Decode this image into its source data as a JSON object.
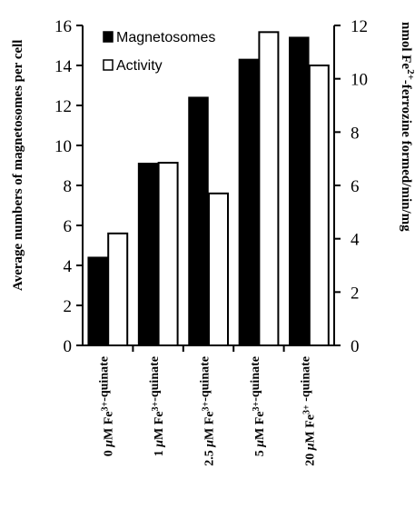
{
  "chart_data": {
    "type": "bar",
    "categories": [
      {
        "amount": "0",
        "label": "0 μM Fe3+-quinate"
      },
      {
        "amount": "1",
        "label": "1 μM Fe3+-quinate"
      },
      {
        "amount": "2.5",
        "label": "2.5 μM Fe3+-quinate"
      },
      {
        "amount": "5",
        "label": "5 μM Fe3+-quinate"
      },
      {
        "amount": "20",
        "label": "20 μM Fe3+ -quinate"
      }
    ],
    "series": [
      {
        "name": "Magnetosomes",
        "axis": "left",
        "fill": "#000000",
        "values": [
          4.4,
          9.1,
          12.4,
          14.3,
          15.4
        ]
      },
      {
        "name": "Activity",
        "axis": "right",
        "fill": "#ffffff",
        "values": [
          4.2,
          6.85,
          5.7,
          11.75,
          10.5
        ]
      }
    ],
    "ylabel_left": "Average numbers of magnetosomes per cell",
    "ylabel_right": "nmol Fe2+-ferrozine formed/min/mg",
    "ylim_left": [
      0,
      16
    ],
    "yticks_left": [
      0,
      2,
      4,
      6,
      8,
      10,
      12,
      14,
      16
    ],
    "ylim_right": [
      0,
      12
    ],
    "yticks_right": [
      0,
      2,
      4,
      6,
      8,
      10,
      12
    ],
    "legend_position": "top-left",
    "grid": false
  }
}
